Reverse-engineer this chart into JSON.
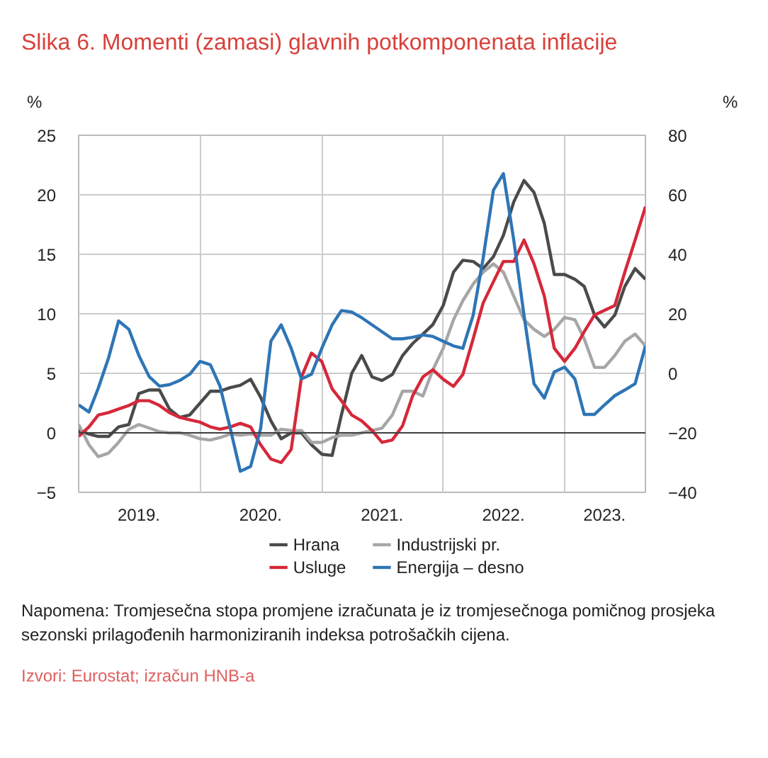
{
  "chart_data": {
    "type": "line",
    "title": "Slika 6. Momenti (zamasi) glavnih potkomponenata inflacije",
    "ylabel": "%",
    "y2label": "%",
    "x": [
      "2019-01",
      "2019-02",
      "2019-03",
      "2019-04",
      "2019-05",
      "2019-06",
      "2019-07",
      "2019-08",
      "2019-09",
      "2019-10",
      "2019-11",
      "2019-12",
      "2020-01",
      "2020-02",
      "2020-03",
      "2020-04",
      "2020-05",
      "2020-06",
      "2020-07",
      "2020-08",
      "2020-09",
      "2020-10",
      "2020-11",
      "2020-12",
      "2021-01",
      "2021-02",
      "2021-03",
      "2021-04",
      "2021-05",
      "2021-06",
      "2021-07",
      "2021-08",
      "2021-09",
      "2021-10",
      "2021-11",
      "2021-12",
      "2022-01",
      "2022-02",
      "2022-03",
      "2022-04",
      "2022-05",
      "2022-06",
      "2022-07",
      "2022-08",
      "2022-09",
      "2022-10",
      "2022-11",
      "2022-12",
      "2023-01",
      "2023-02",
      "2023-03",
      "2023-04",
      "2023-05",
      "2023-06",
      "2023-07",
      "2023-08",
      "2023-09"
    ],
    "series": [
      {
        "name": "Hrana",
        "color": "#4a4a4a",
        "values": [
          0.2,
          -0.1,
          -0.3,
          -0.3,
          0.5,
          0.7,
          3.3,
          3.6,
          3.6,
          2.0,
          1.3,
          1.5,
          2.5,
          3.5,
          3.5,
          3.8,
          4.0,
          4.5,
          3.0,
          1.0,
          -0.5,
          0,
          0,
          -1.0,
          -1.8,
          -1.9,
          1.5,
          5.0,
          6.5,
          4.7,
          4.4,
          4.9,
          6.5,
          7.5,
          8.3,
          9.1,
          10.7,
          13.5,
          14.5,
          14.4,
          13.8,
          14.8,
          16.6,
          19.4,
          21.2,
          20.2,
          17.6,
          13.3,
          13.3,
          12.9,
          12.3,
          9.9,
          8.9,
          9.9,
          12.3,
          13.8,
          12.9
        ]
      },
      {
        "name": "Industrijski pr.",
        "color": "#a6a6a6",
        "values": [
          0.7,
          -1.0,
          -2.0,
          -1.7,
          -0.8,
          0.3,
          0.7,
          0.4,
          0.1,
          0,
          0,
          -0.2,
          -0.5,
          -0.6,
          -0.4,
          -0.1,
          -0.2,
          -0.1,
          -0.2,
          -0.2,
          0.3,
          0.2,
          0.2,
          -0.8,
          -0.8,
          -0.4,
          -0.2,
          -0.2,
          0,
          0.2,
          0.4,
          1.5,
          3.5,
          3.5,
          3.1,
          5.3,
          7.1,
          9.5,
          11.1,
          12.5,
          13.5,
          14.2,
          13.5,
          11.5,
          9.5,
          8.7,
          8.1,
          8.7,
          9.7,
          9.5,
          7.9,
          5.5,
          5.5,
          6.5,
          7.7,
          8.3,
          7.3
        ]
      },
      {
        "name": "Usluge",
        "color": "#d6283a",
        "values": [
          -0.3,
          0.5,
          1.5,
          1.7,
          2.0,
          2.3,
          2.7,
          2.7,
          2.3,
          1.7,
          1.3,
          1.1,
          0.9,
          0.5,
          0.3,
          0.5,
          0.8,
          0.5,
          -1.0,
          -2.2,
          -2.5,
          -1.4,
          4.7,
          6.7,
          6.0,
          3.7,
          2.7,
          1.5,
          1.0,
          0.2,
          -0.8,
          -0.6,
          0.6,
          3.1,
          4.7,
          5.3,
          4.5,
          3.9,
          4.9,
          7.9,
          10.9,
          12.7,
          14.4,
          14.4,
          16.2,
          14.2,
          11.5,
          7.1,
          6.0,
          7.1,
          8.5,
          9.9,
          10.3,
          10.7,
          13.5,
          16.2,
          19.0
        ]
      },
      {
        "name": "Energija – desno",
        "color": "#2e75b6",
        "axis": "y2",
        "values": [
          -10.6,
          -13,
          -5,
          5.2,
          17.6,
          14.8,
          6,
          -1.1,
          -4.3,
          -3.8,
          -2.4,
          -0.3,
          4,
          2.9,
          -4.3,
          -18.6,
          -32.9,
          -31.3,
          -18.6,
          10.8,
          16.3,
          8.4,
          -1.9,
          -0.3,
          8.4,
          16.3,
          21.1,
          20.6,
          18.7,
          16.3,
          14,
          11.6,
          11.6,
          12.1,
          12.9,
          12.4,
          10.8,
          9.2,
          8.4,
          19.5,
          38.6,
          61.6,
          67.1,
          44.9,
          19.5,
          -3.5,
          -8.3,
          0.5,
          2.1,
          -1.9,
          -13.8,
          -13.8,
          -10.6,
          -7.5,
          -5.6,
          -3.5,
          9.2
        ]
      }
    ],
    "xlim": [
      "2019-01",
      "2023-09"
    ],
    "xticks": [
      {
        "value": "2019-07",
        "label": "2019."
      },
      {
        "value": "2020-01",
        "label": null
      },
      {
        "value": "2020-07",
        "label": "2020."
      },
      {
        "value": "2021-01",
        "label": null
      },
      {
        "value": "2021-07",
        "label": "2021."
      },
      {
        "value": "2022-01",
        "label": null
      },
      {
        "value": "2022-07",
        "label": "2022."
      },
      {
        "value": "2023-01",
        "label": null
      },
      {
        "value": "2023-05",
        "label": "2023."
      }
    ],
    "ylim": [
      -5,
      25
    ],
    "yticks": [
      -5,
      0,
      5,
      10,
      15,
      20,
      25
    ],
    "y2lim": [
      -40,
      80
    ],
    "y2ticks": [
      -40,
      -20,
      0,
      20,
      40,
      60,
      80
    ],
    "ref_lines": [
      {
        "axis": "y",
        "value": 0,
        "color": "#404040"
      }
    ],
    "grid": true,
    "legend": "bottom",
    "annotations": [
      "Napomena: Tromjesečna stopa promjene izračunata je iz tromjesečnoga pomičnog prosjeka sezonski prilagođenih harmoniziranih indeksa potrošačkih cijena.",
      "Izvori: Eurostat; izračun HNB-a"
    ]
  }
}
